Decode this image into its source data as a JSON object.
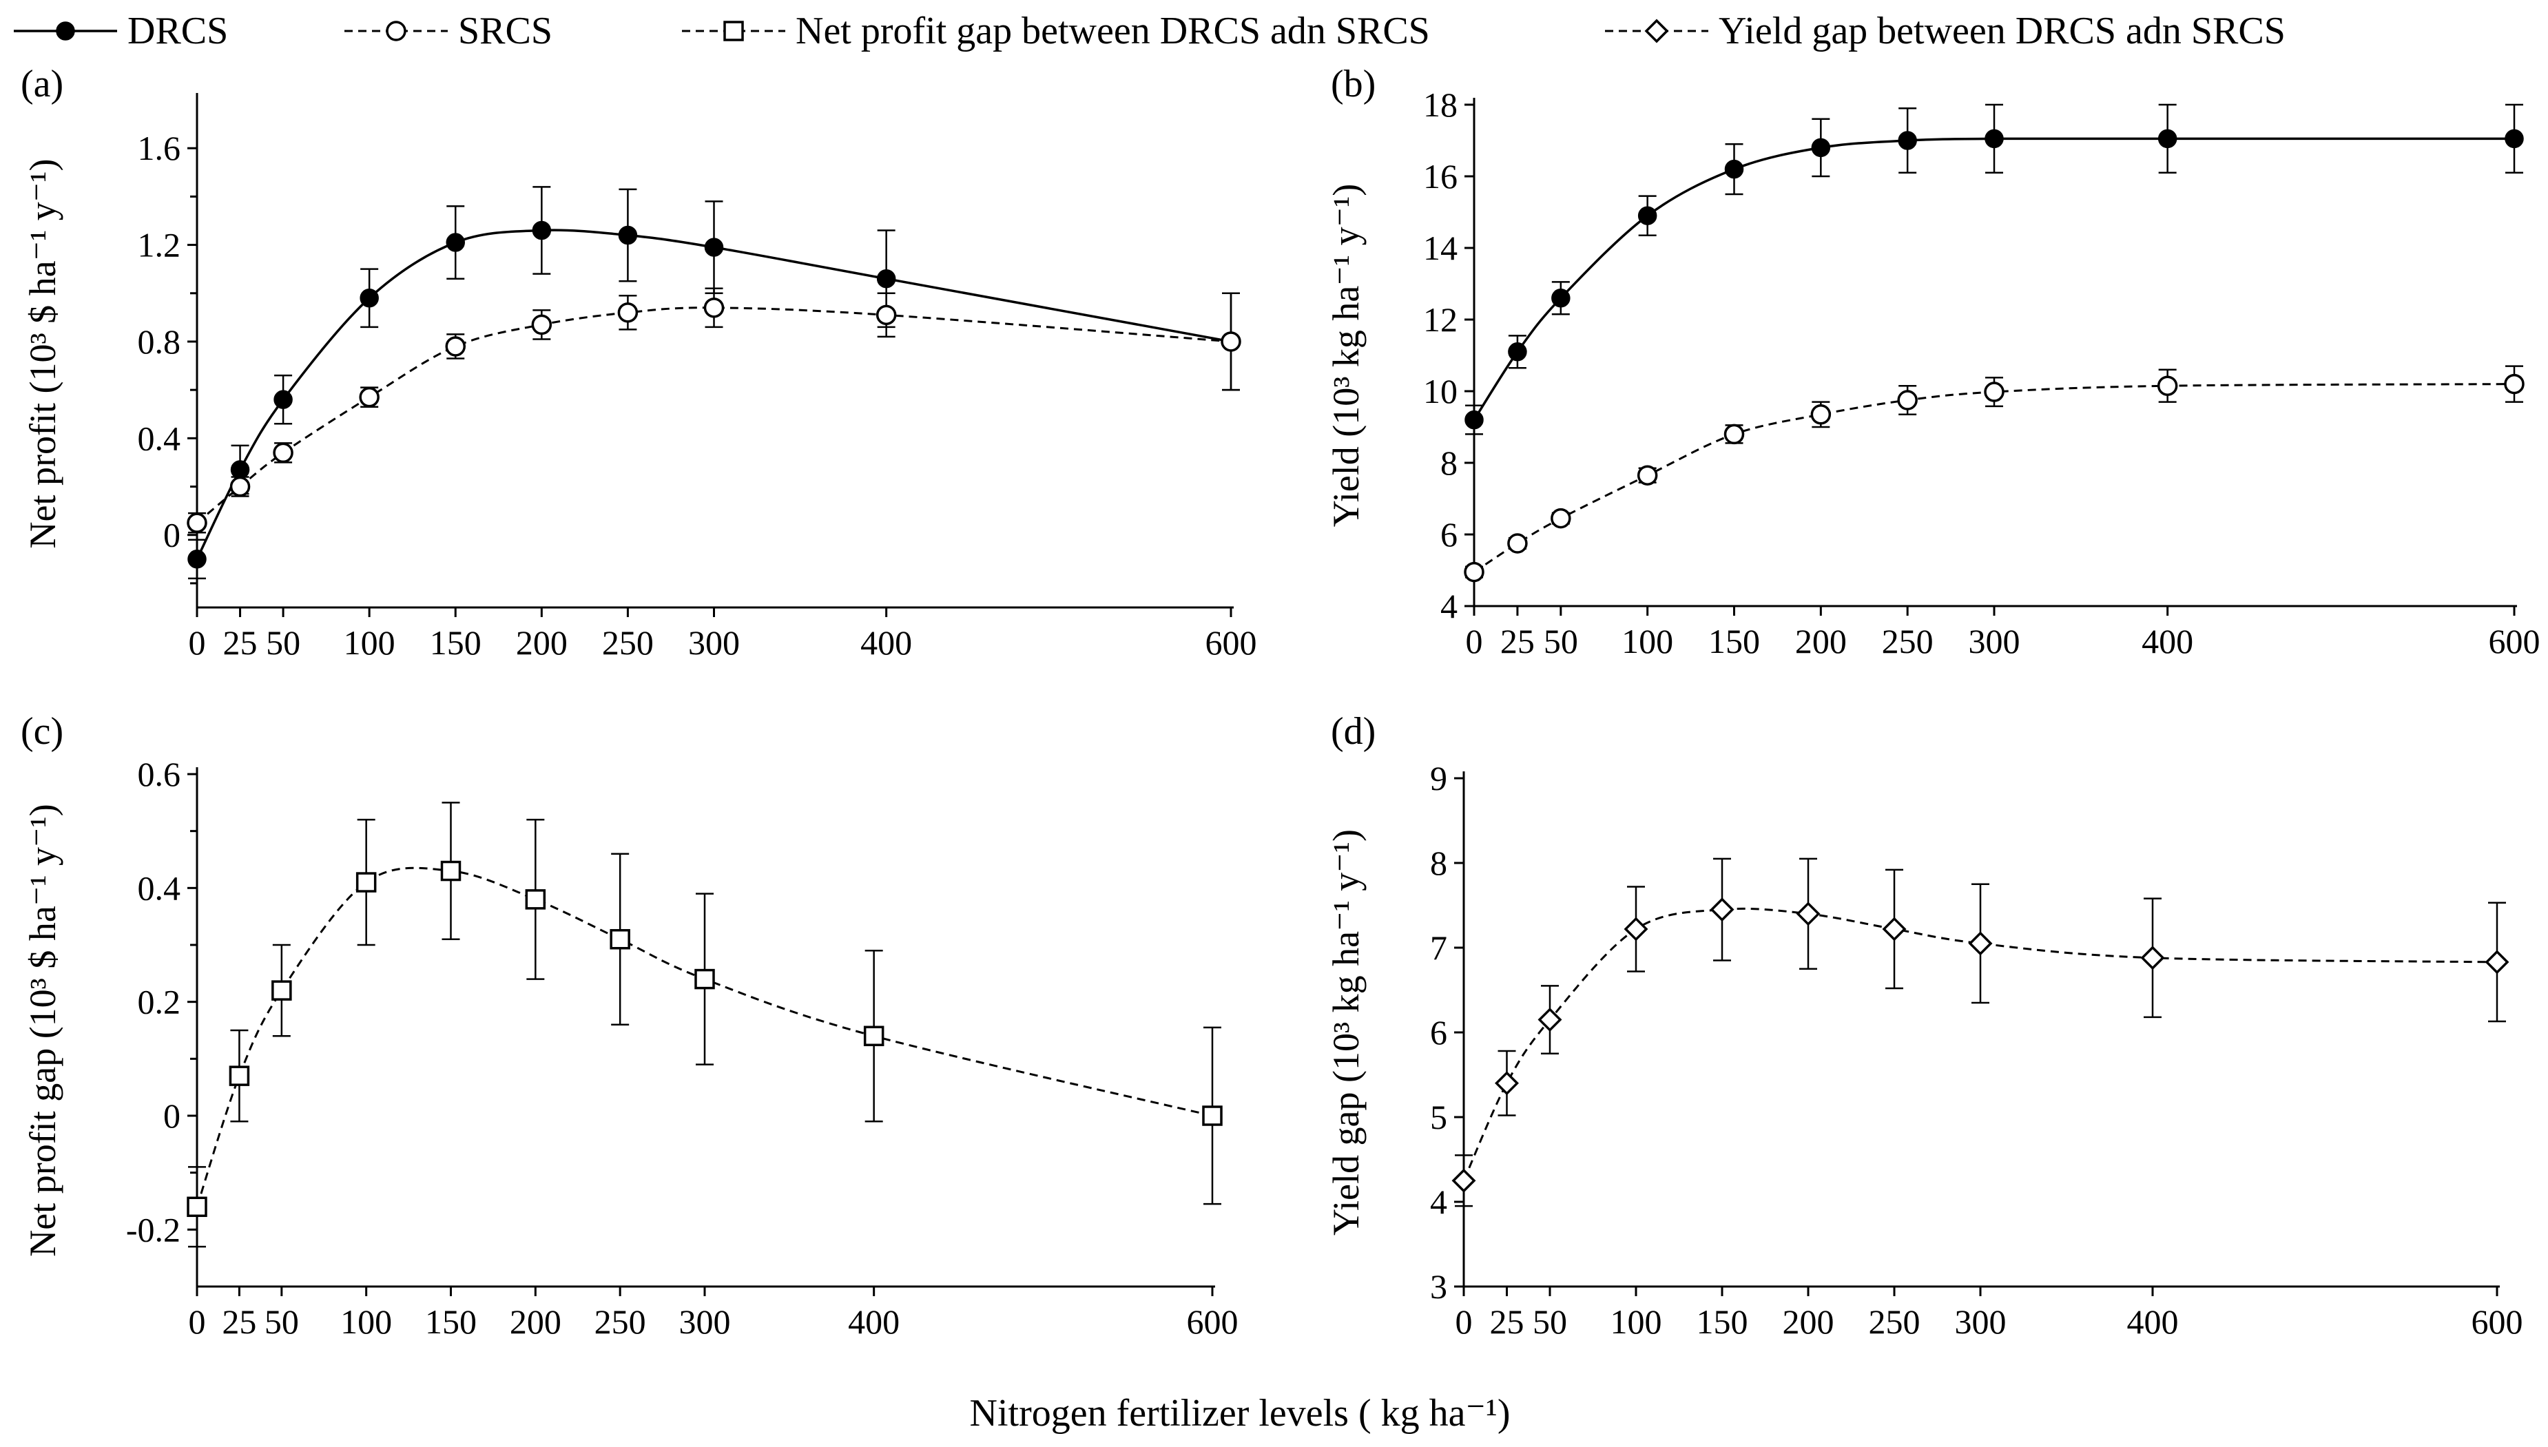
{
  "legend": [
    {
      "label": "DRCS",
      "marker": "filled-circle",
      "line": "solid"
    },
    {
      "label": "SRCS",
      "marker": "open-circle",
      "line": "dashed"
    },
    {
      "label": "Net profit gap between DRCS adn SRCS",
      "marker": "open-square",
      "line": "dashed"
    },
    {
      "label": "Yield gap between DRCS adn SRCS",
      "marker": "open-diamond",
      "line": "dashed"
    }
  ],
  "xlabel": "Nitrogen fertilizer levels ( kg ha⁻¹)",
  "chart_data": [
    {
      "id": "a",
      "tag": "(a)",
      "type": "line",
      "ylabel": "Net profit (10³ $ ha⁻¹ y⁻¹)",
      "xlim": [
        0,
        600
      ],
      "ylim": [
        -0.3,
        1.8
      ],
      "xticks": [
        0,
        25,
        50,
        100,
        150,
        200,
        250,
        300,
        400,
        600
      ],
      "yticks": [
        0,
        0.4,
        0.8,
        1.2,
        1.6
      ],
      "ytick_labels": [
        "0",
        "0.4",
        "0.8",
        "1.2",
        "1.6"
      ],
      "ytick_minor": [
        -0.2,
        0.2,
        0.6,
        1.0,
        1.4
      ],
      "x": [
        0,
        25,
        50,
        100,
        150,
        200,
        250,
        300,
        400,
        600
      ],
      "series": [
        {
          "name": "DRCS",
          "marker": "filled-circle",
          "line": "solid",
          "values": [
            -0.1,
            0.27,
            0.56,
            0.98,
            1.21,
            1.26,
            1.24,
            1.19,
            1.06,
            0.8
          ],
          "errors": [
            0.08,
            0.1,
            0.1,
            0.12,
            0.15,
            0.18,
            0.19,
            0.19,
            0.2,
            0.2
          ]
        },
        {
          "name": "SRCS",
          "marker": "open-circle",
          "line": "dashed",
          "values": [
            0.05,
            0.2,
            0.34,
            0.57,
            0.78,
            0.87,
            0.92,
            0.94,
            0.91,
            0.8
          ],
          "errors": [
            0.04,
            0.04,
            0.04,
            0.04,
            0.05,
            0.06,
            0.07,
            0.08,
            0.09,
            0.2
          ]
        }
      ]
    },
    {
      "id": "b",
      "tag": "(b)",
      "type": "line",
      "ylabel": "Yield (10³ kg ha⁻¹ y⁻¹)",
      "xlim": [
        0,
        600
      ],
      "ylim": [
        4,
        18
      ],
      "xticks": [
        0,
        25,
        50,
        100,
        150,
        200,
        250,
        300,
        400,
        600
      ],
      "yticks": [
        4,
        6,
        8,
        10,
        12,
        14,
        16,
        18
      ],
      "ytick_labels": [
        "4",
        "6",
        "8",
        "10",
        "12",
        "14",
        "16",
        "18"
      ],
      "ytick_minor": [],
      "x": [
        0,
        25,
        50,
        100,
        150,
        200,
        250,
        300,
        400,
        600
      ],
      "series": [
        {
          "name": "DRCS",
          "marker": "filled-circle",
          "line": "solid",
          "values": [
            9.2,
            11.1,
            12.6,
            14.9,
            16.2,
            16.8,
            17.0,
            17.05,
            17.05,
            17.05
          ],
          "errors": [
            0.4,
            0.45,
            0.45,
            0.55,
            0.7,
            0.8,
            0.9,
            0.95,
            0.95,
            0.95
          ]
        },
        {
          "name": "SRCS",
          "marker": "open-circle",
          "line": "dashed",
          "values": [
            4.95,
            5.75,
            6.45,
            7.65,
            8.8,
            9.35,
            9.75,
            9.98,
            10.15,
            10.2
          ],
          "errors": [
            0.15,
            0.15,
            0.15,
            0.2,
            0.25,
            0.35,
            0.4,
            0.4,
            0.45,
            0.5
          ]
        }
      ]
    },
    {
      "id": "c",
      "tag": "(c)",
      "type": "line",
      "ylabel": "Net profit gap (10³ $ ha⁻¹ y⁻¹)",
      "xlim": [
        0,
        600
      ],
      "ylim": [
        -0.3,
        0.6
      ],
      "xticks": [
        0,
        25,
        50,
        100,
        150,
        200,
        250,
        300,
        400,
        600
      ],
      "yticks": [
        -0.2,
        0,
        0.2,
        0.4,
        0.6
      ],
      "ytick_labels": [
        "-0.2",
        "0",
        "0.2",
        "0.4",
        "0.6"
      ],
      "ytick_minor": [
        -0.1,
        0.1,
        0.3,
        0.5
      ],
      "x": [
        0,
        25,
        50,
        100,
        150,
        200,
        250,
        300,
        400,
        600
      ],
      "series": [
        {
          "name": "Net profit gap between DRCS adn SRCS",
          "marker": "open-square",
          "line": "dashed",
          "values": [
            -0.16,
            0.07,
            0.22,
            0.41,
            0.43,
            0.38,
            0.31,
            0.24,
            0.14,
            0.0
          ],
          "errors": [
            0.07,
            0.08,
            0.08,
            0.11,
            0.12,
            0.14,
            0.15,
            0.15,
            0.15,
            0.155
          ]
        }
      ]
    },
    {
      "id": "d",
      "tag": "(d)",
      "type": "line",
      "ylabel": "Yield gap (10³ kg ha⁻¹ y⁻¹)",
      "xlim": [
        0,
        600
      ],
      "ylim": [
        3,
        9
      ],
      "xticks": [
        0,
        25,
        50,
        100,
        150,
        200,
        250,
        300,
        400,
        600
      ],
      "yticks": [
        3,
        4,
        5,
        6,
        7,
        8,
        9
      ],
      "ytick_labels": [
        "3",
        "4",
        "5",
        "6",
        "7",
        "8",
        "9"
      ],
      "ytick_minor": [],
      "x": [
        0,
        25,
        50,
        100,
        150,
        200,
        250,
        300,
        400,
        600
      ],
      "series": [
        {
          "name": "Yield gap between DRCS adn SRCS",
          "marker": "open-diamond",
          "line": "dashed",
          "values": [
            4.25,
            5.4,
            6.15,
            7.22,
            7.45,
            7.4,
            7.22,
            7.05,
            6.88,
            6.83
          ],
          "errors": [
            0.3,
            0.38,
            0.4,
            0.5,
            0.6,
            0.65,
            0.7,
            0.7,
            0.7,
            0.7
          ]
        }
      ]
    }
  ]
}
